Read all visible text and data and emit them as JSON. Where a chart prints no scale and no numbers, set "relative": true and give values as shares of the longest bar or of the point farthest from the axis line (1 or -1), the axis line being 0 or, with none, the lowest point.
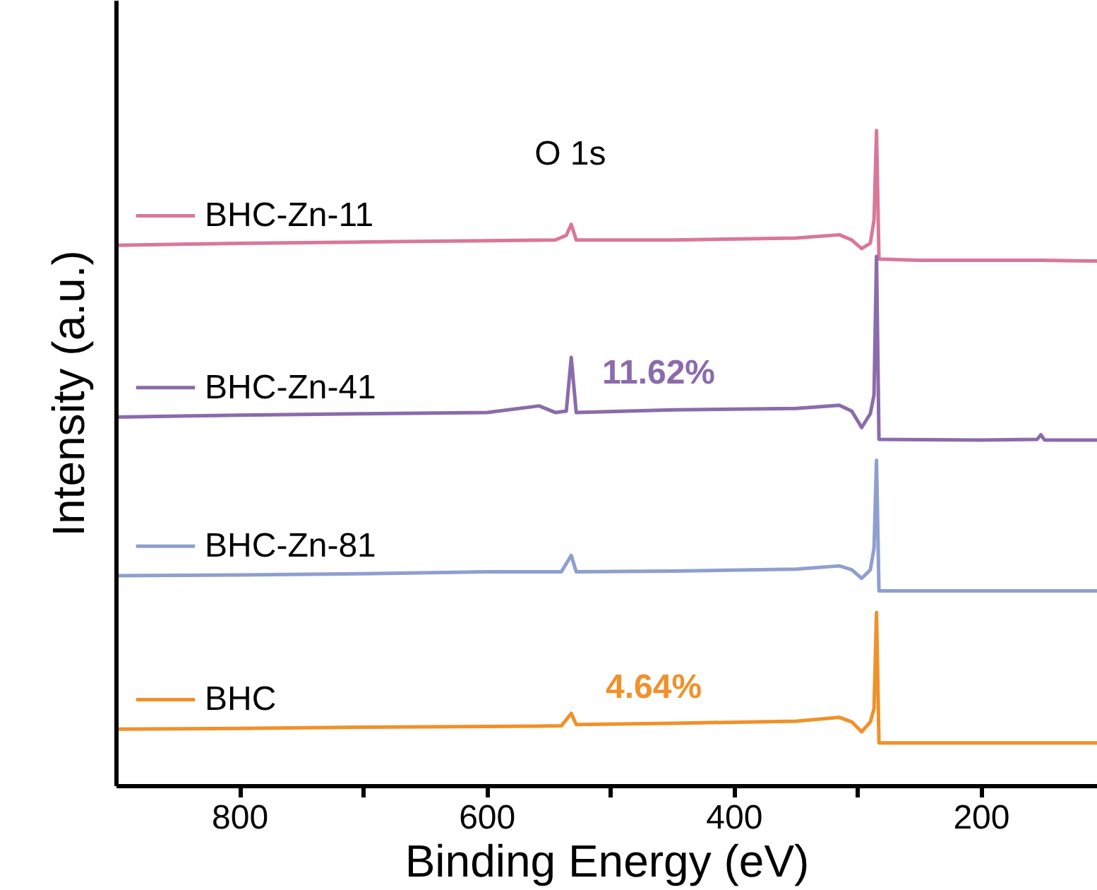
{
  "chart_data": {
    "type": "line",
    "relative": true,
    "xlabel": "Binding Energy (eV)",
    "ylabel": "Intensity (a.u.)",
    "xlim": [
      900,
      106
    ],
    "xticks": [
      800,
      {
        "value": 700,
        "label": null
      },
      600,
      {
        "value": 500,
        "label": null
      },
      400,
      {
        "value": 300,
        "label": null
      },
      200
    ],
    "grid": false,
    "marker": "none",
    "line_style": "solid",
    "series": [
      {
        "name": "BHC-Zn-11",
        "color": "#d9779b",
        "x": [
          900,
          800,
          700,
          600,
          545,
          536,
          532,
          528,
          450,
          350,
          315,
          305,
          297,
          290,
          287,
          285,
          283,
          250,
          150,
          106
        ],
        "values": [
          0.825,
          0.828,
          0.83,
          0.832,
          0.833,
          0.84,
          0.857,
          0.833,
          0.833,
          0.836,
          0.841,
          0.833,
          0.82,
          0.828,
          0.864,
          1.0,
          0.804,
          0.802,
          0.802,
          0.801
        ]
      },
      {
        "name": "BHC-Zn-41",
        "color": "#8b6bab",
        "x": [
          900,
          800,
          700,
          600,
          558,
          545,
          536,
          532,
          528,
          450,
          350,
          315,
          305,
          297,
          290,
          287,
          285,
          283,
          200,
          155,
          152,
          149,
          106
        ],
        "values": [
          0.563,
          0.566,
          0.568,
          0.57,
          0.58,
          0.57,
          0.572,
          0.654,
          0.57,
          0.574,
          0.576,
          0.581,
          0.572,
          0.547,
          0.568,
          0.597,
          0.808,
          0.529,
          0.528,
          0.529,
          0.536,
          0.528,
          0.528
        ]
      },
      {
        "name": "BHC-Zn-81",
        "color": "#8e9fcf",
        "x": [
          900,
          800,
          700,
          600,
          540,
          532,
          528,
          450,
          350,
          315,
          305,
          297,
          290,
          287,
          285,
          283,
          106
        ],
        "values": [
          0.321,
          0.322,
          0.324,
          0.327,
          0.327,
          0.352,
          0.327,
          0.328,
          0.331,
          0.336,
          0.33,
          0.317,
          0.33,
          0.363,
          0.497,
          0.298,
          0.298
        ]
      },
      {
        "name": "BHC",
        "color": "#f0912a",
        "x": [
          900,
          800,
          700,
          600,
          540,
          532,
          528,
          450,
          350,
          315,
          305,
          297,
          290,
          287,
          285,
          283,
          106
        ],
        "values": [
          0.087,
          0.088,
          0.09,
          0.091,
          0.092,
          0.111,
          0.094,
          0.096,
          0.099,
          0.105,
          0.098,
          0.083,
          0.098,
          0.118,
          0.265,
          0.066,
          0.066
        ]
      }
    ],
    "annotations": [
      "O 1s",
      "11.62%",
      "4.64%"
    ],
    "legend": "left"
  }
}
